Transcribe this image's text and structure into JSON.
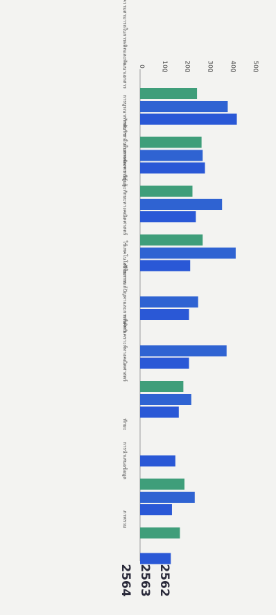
{
  "chart_data": {
    "type": "bar",
    "orientation": "horizontal",
    "categories": [
      "ความสามารถในการผลิตและพัฒนาเอกสาร",
      "ทักษะการ",
      "การบูรณาการกับวิชาอื่นในการจัดการเรียนรู้",
      "การทดลองความรู้และทักษะทางคณิตศาสตร์",
      "ทักษะการ",
      "ใช้เทคโนโลยีในการแก้ปัญหาและการสื่อสาร",
      "การคิดวิเคราะห์ทางคณิตศาสตร์",
      "ทักษะ",
      "การนำเสนอข้อมูล",
      "ภาพรวม"
    ],
    "series": [
      {
        "name": "2562",
        "color": "#3f9e7a",
        "values": [
          250,
          270,
          230,
          275,
          null,
          null,
          190,
          null,
          195,
          175
        ]
      },
      {
        "name": "2563",
        "color": "#2f63d2",
        "values": [
          385,
          275,
          360,
          420,
          255,
          380,
          225,
          null,
          240,
          null
        ]
      },
      {
        "name": "2564",
        "color": "#2a58d6",
        "values": [
          425,
          285,
          245,
          220,
          215,
          215,
          170,
          155,
          140,
          135
        ]
      }
    ],
    "xlim": [
      0,
      600
    ],
    "ticks": [
      "0",
      "100",
      "200",
      "300",
      "400",
      "500",
      "600"
    ],
    "grid": false,
    "legend": "bottom"
  }
}
